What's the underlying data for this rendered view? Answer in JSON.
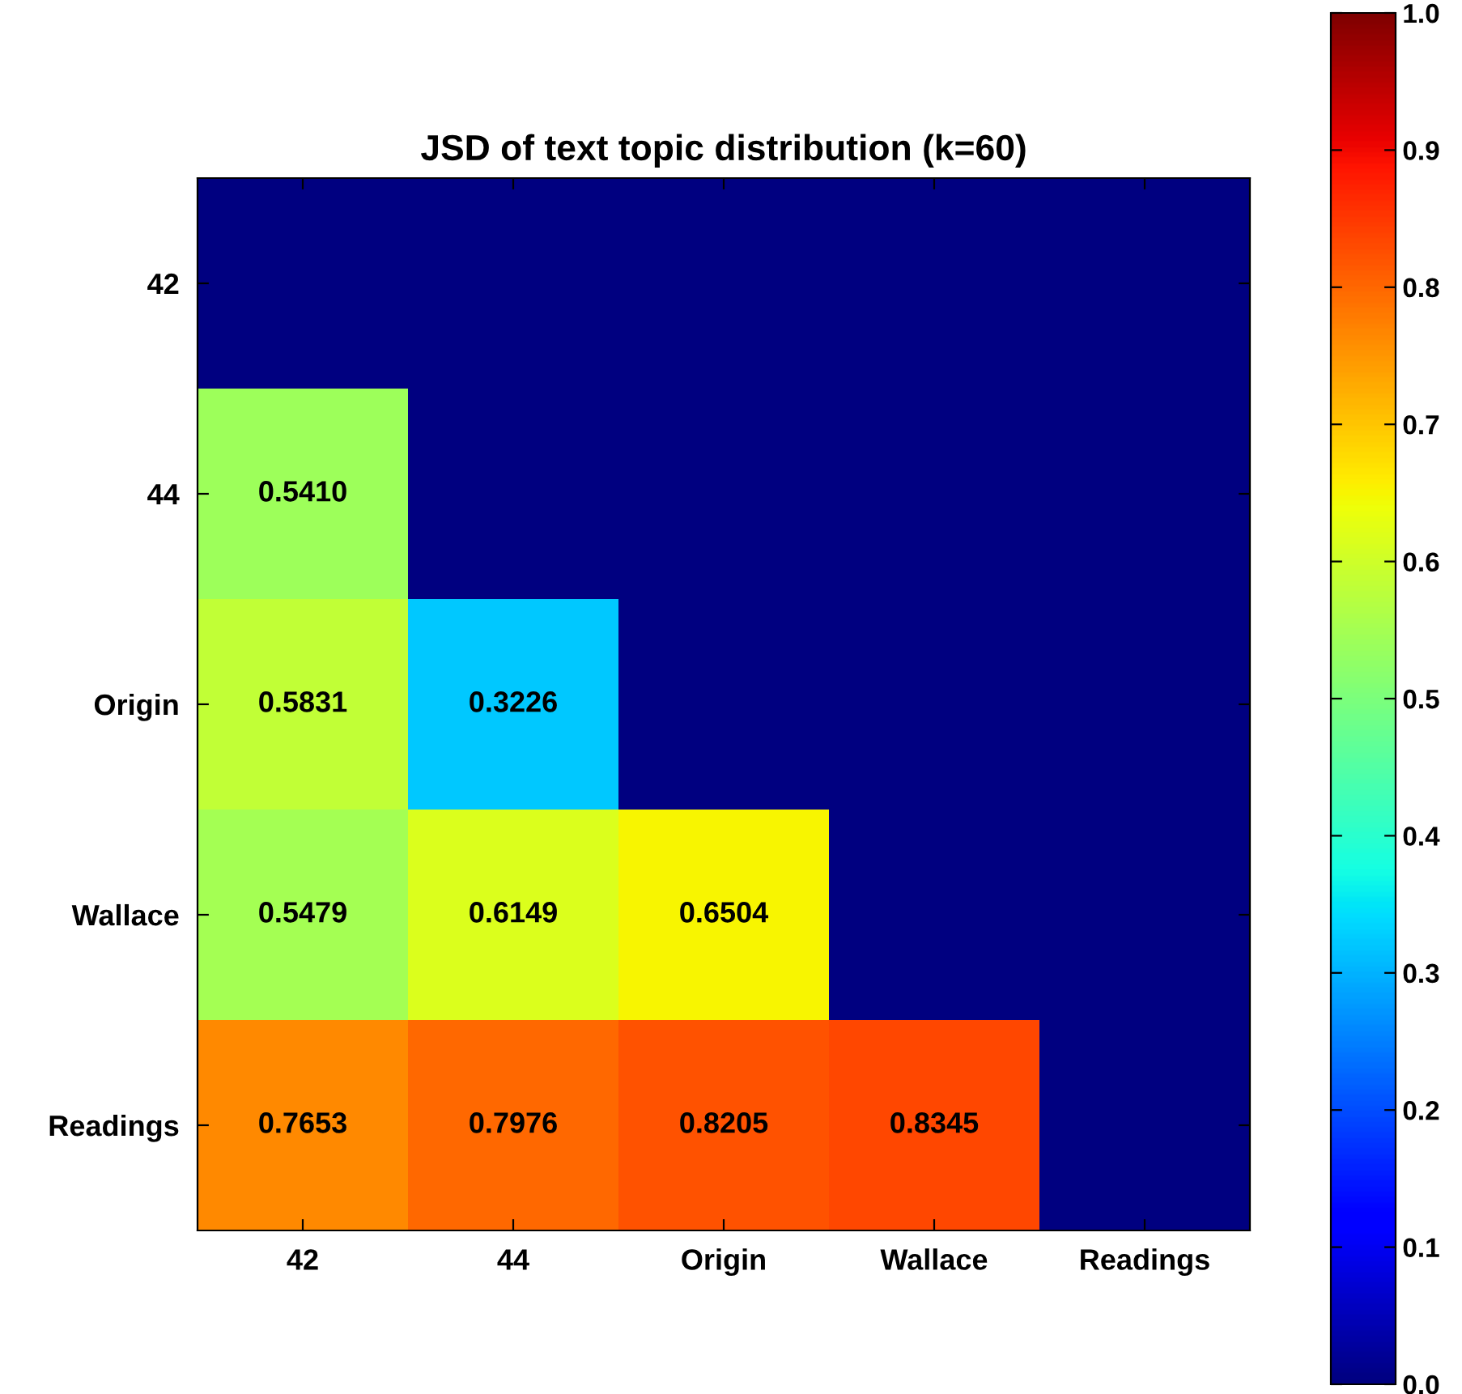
{
  "chart_data": {
    "type": "heatmap",
    "title": "JSD of text topic distribution (k=60)",
    "categories": [
      "42",
      "44",
      "Origin",
      "Wallace",
      "Readings"
    ],
    "y_categories": [
      "42",
      "44",
      "Origin",
      "Wallace",
      "Readings"
    ],
    "cells": [
      [
        0,
        0,
        0,
        0,
        0
      ],
      [
        0.541,
        0,
        0,
        0,
        0
      ],
      [
        0.5831,
        0.3226,
        0,
        0,
        0
      ],
      [
        0.5479,
        0.6149,
        0.6504,
        0,
        0
      ],
      [
        0.7653,
        0.7976,
        0.8205,
        0.8345,
        0
      ]
    ],
    "cell_labels": [
      [
        null,
        null,
        null,
        null,
        null
      ],
      [
        "0.5410",
        null,
        null,
        null,
        null
      ],
      [
        "0.5831",
        "0.3226",
        null,
        null,
        null
      ],
      [
        "0.5479",
        "0.6149",
        "0.6504",
        null,
        null
      ],
      [
        "0.7653",
        "0.7976",
        "0.8205",
        "0.8345",
        null
      ]
    ],
    "clim": [
      0,
      1
    ],
    "cticks": [
      {
        "value": 0,
        "label": "0.0"
      },
      {
        "value": 0.1,
        "label": "0.1"
      },
      {
        "value": 0.2,
        "label": "0.2"
      },
      {
        "value": 0.3,
        "label": "0.3"
      },
      {
        "value": 0.4,
        "label": "0.4"
      },
      {
        "value": 0.5,
        "label": "0.5"
      },
      {
        "value": 0.6,
        "label": "0.6"
      },
      {
        "value": 0.7,
        "label": "0.7"
      },
      {
        "value": 0.8,
        "label": "0.8"
      },
      {
        "value": 0.9,
        "label": "0.9"
      },
      {
        "value": 1,
        "label": "1.0"
      }
    ]
  }
}
